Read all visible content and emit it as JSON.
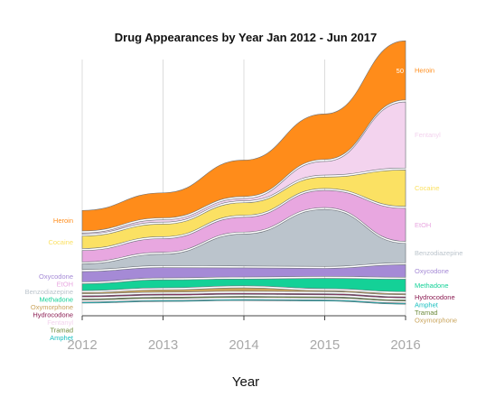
{
  "chart_data": {
    "type": "stream",
    "title": "Drug Appearances by Year Jan 2012 - Jun 2017",
    "xlabel": "Year",
    "ylabel": "",
    "x": [
      "2012",
      "2013",
      "2014",
      "2015",
      "2016"
    ],
    "xticks": [
      "2012",
      "2013",
      "2014",
      "2015",
      "2016"
    ],
    "grid": true,
    "left_label_order": [
      "Heroin",
      "Cocaine",
      "Oxycodone",
      "EtOH",
      "Benzodiazepine",
      "Methadone",
      "Oxymorphone",
      "Hydrocodone",
      "Fentanyl",
      "Tramad",
      "Amphet"
    ],
    "right_label_order": [
      "Heroin",
      "Fentanyl",
      "Cocaine",
      "EtOH",
      "Benzodiazepine",
      "Oxycodone",
      "Methadone",
      "Hydrocodone",
      "Amphet",
      "Tramad",
      "Oxymorphone"
    ],
    "value_annotation": "50",
    "series": [
      {
        "name": "Heroin",
        "color": "#FF8C1A",
        "values": [
          18,
          22,
          32,
          40,
          52
        ]
      },
      {
        "name": "Fentanyl",
        "color": "#F3D3EE",
        "values": [
          1,
          2,
          2,
          12,
          58
        ]
      },
      {
        "name": "Cocaine",
        "color": "#FBE163",
        "values": [
          11,
          11,
          11,
          10,
          32
        ]
      },
      {
        "name": "EtOH",
        "color": "#E8A7E0",
        "values": [
          10,
          12,
          13,
          15,
          29
        ]
      },
      {
        "name": "Benzodiazepine",
        "color": "#BBC4CC",
        "values": [
          5,
          10,
          28,
          50,
          17
        ]
      },
      {
        "name": "Oxycodone",
        "color": "#A58AD6",
        "values": [
          9,
          9,
          8,
          7,
          11
        ]
      },
      {
        "name": "Methadone",
        "color": "#14D197",
        "values": [
          6,
          7,
          6,
          9,
          11
        ]
      },
      {
        "name": "Oxymorphone",
        "color": "#C9A45C",
        "values": [
          1,
          2,
          3,
          1,
          1
        ]
      },
      {
        "name": "Hydrocodone",
        "color": "#8B1C52",
        "values": [
          1,
          1,
          1,
          1,
          1
        ]
      },
      {
        "name": "Tramad",
        "color": "#6E8B3D",
        "values": [
          1,
          1,
          1,
          1,
          1
        ]
      },
      {
        "name": "Amphet",
        "color": "#18BFBF",
        "values": [
          1,
          1,
          1,
          1,
          1
        ]
      }
    ]
  }
}
